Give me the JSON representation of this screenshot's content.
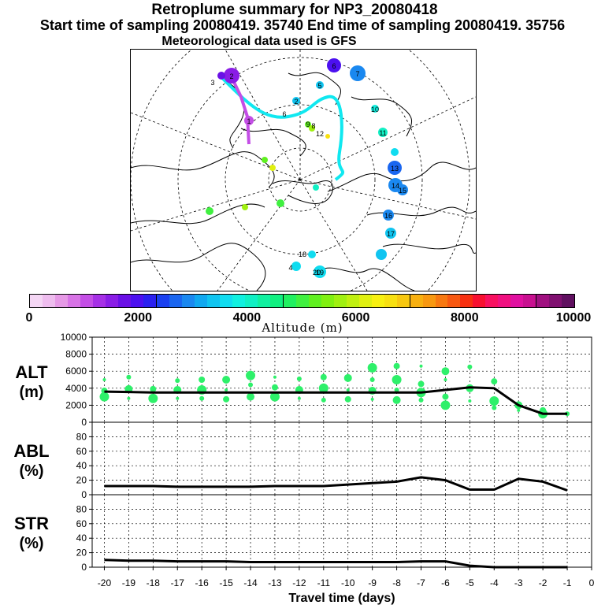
{
  "header": {
    "title": "Retroplume summary for NP3_20080418",
    "subtitle": "Start time of sampling 20080419. 35740     End time of sampling 20080419. 35756",
    "met_note": "Meteorological data used is GFS"
  },
  "colorbar": {
    "label": "Altitude (m)",
    "ticks": [
      "0",
      "2000",
      "4000",
      "6000",
      "8000",
      "10000"
    ],
    "colors": [
      "#f4d6f4",
      "#eebcee",
      "#e699e6",
      "#d873e6",
      "#c44ee6",
      "#a630e6",
      "#8a1de6",
      "#6a10e6",
      "#4c10f0",
      "#2a20f0",
      "#1a40f0",
      "#1a66f0",
      "#1a88f0",
      "#10a8f0",
      "#10c4f0",
      "#10dcf0",
      "#10f0e0",
      "#10f0c4",
      "#10f0a0",
      "#10f080",
      "#20f060",
      "#40f040",
      "#60f020",
      "#80f010",
      "#a0f010",
      "#c0f010",
      "#e0f010",
      "#f8f010",
      "#f8e010",
      "#f8c810",
      "#f8b010",
      "#f89810",
      "#f87810",
      "#f85810",
      "#f83010",
      "#f81030",
      "#f81060",
      "#f01080",
      "#e010a0",
      "#c81090",
      "#a01080",
      "#801070",
      "#601060"
    ]
  },
  "map": {
    "labels": [
      "2",
      "3",
      "6",
      "7",
      "1",
      "6",
      "2",
      "9",
      "5",
      "10",
      "11",
      "13",
      "14",
      "15",
      "16",
      "17",
      "18",
      "19",
      "20",
      "12",
      "8",
      "4"
    ]
  },
  "chart_data": [
    {
      "type": "line",
      "panel": "ALT",
      "ylabel": "ALT",
      "yunit": "(m)",
      "ylim": [
        0,
        10000
      ],
      "yticks": [
        "0",
        "2000",
        "4000",
        "6000",
        "8000",
        "10000"
      ],
      "x": [
        -20,
        -19,
        -18,
        -17,
        -16,
        -15,
        -14,
        -13,
        -12,
        -11,
        -10,
        -9,
        -8,
        -7,
        -6,
        -5,
        -4,
        -3,
        -2,
        -1
      ],
      "values": [
        3600,
        3550,
        3500,
        3500,
        3500,
        3500,
        3500,
        3500,
        3500,
        3500,
        3500,
        3500,
        3500,
        3500,
        3800,
        4100,
        4000,
        2000,
        1000,
        1000
      ],
      "scatter": [
        {
          "x": -20,
          "y": 5000
        },
        {
          "x": -20,
          "y": 3700
        },
        {
          "x": -20,
          "y": 3000
        },
        {
          "x": -19,
          "y": 5300
        },
        {
          "x": -19,
          "y": 3900
        },
        {
          "x": -19,
          "y": 2800
        },
        {
          "x": -18,
          "y": 3900
        },
        {
          "x": -18,
          "y": 2800
        },
        {
          "x": -17,
          "y": 4900
        },
        {
          "x": -17,
          "y": 3800
        },
        {
          "x": -17,
          "y": 2800
        },
        {
          "x": -16,
          "y": 5000
        },
        {
          "x": -16,
          "y": 3800
        },
        {
          "x": -16,
          "y": 2800
        },
        {
          "x": -15,
          "y": 5000
        },
        {
          "x": -15,
          "y": 3800
        },
        {
          "x": -15,
          "y": 2700
        },
        {
          "x": -14,
          "y": 5500
        },
        {
          "x": -14,
          "y": 4400
        },
        {
          "x": -14,
          "y": 3000
        },
        {
          "x": -13,
          "y": 5300
        },
        {
          "x": -13,
          "y": 4100
        },
        {
          "x": -13,
          "y": 3000
        },
        {
          "x": -12,
          "y": 5100
        },
        {
          "x": -12,
          "y": 3800
        },
        {
          "x": -12,
          "y": 2800
        },
        {
          "x": -11,
          "y": 5300
        },
        {
          "x": -11,
          "y": 4000
        },
        {
          "x": -11,
          "y": 2600
        },
        {
          "x": -10,
          "y": 5200
        },
        {
          "x": -10,
          "y": 3800
        },
        {
          "x": -10,
          "y": 2700
        },
        {
          "x": -9,
          "y": 6400
        },
        {
          "x": -9,
          "y": 5000
        },
        {
          "x": -9,
          "y": 3700
        },
        {
          "x": -9,
          "y": 2700
        },
        {
          "x": -8,
          "y": 6600
        },
        {
          "x": -8,
          "y": 5000
        },
        {
          "x": -8,
          "y": 3800
        },
        {
          "x": -8,
          "y": 2600
        },
        {
          "x": -7,
          "y": 6600
        },
        {
          "x": -7,
          "y": 4500
        },
        {
          "x": -7,
          "y": 3500
        },
        {
          "x": -7,
          "y": 2600
        },
        {
          "x": -6,
          "y": 6000
        },
        {
          "x": -6,
          "y": 5000
        },
        {
          "x": -6,
          "y": 3000
        },
        {
          "x": -6,
          "y": 2000
        },
        {
          "x": -5,
          "y": 6500
        },
        {
          "x": -5,
          "y": 4000
        },
        {
          "x": -5,
          "y": 2500
        },
        {
          "x": -4,
          "y": 4800
        },
        {
          "x": -4,
          "y": 2500
        },
        {
          "x": -4,
          "y": 1700
        },
        {
          "x": -3,
          "y": 2000
        },
        {
          "x": -3,
          "y": 1400
        },
        {
          "x": -2,
          "y": 1400
        },
        {
          "x": -2,
          "y": 1000
        },
        {
          "x": -1,
          "y": 1000
        }
      ]
    },
    {
      "type": "line",
      "panel": "ABL",
      "ylabel": "ABL",
      "yunit": "(%)",
      "ylim": [
        0,
        100
      ],
      "yticks": [
        "0",
        "20",
        "40",
        "60",
        "80"
      ],
      "x": [
        -20,
        -19,
        -18,
        -17,
        -16,
        -15,
        -14,
        -13,
        -12,
        -11,
        -10,
        -9,
        -8,
        -7,
        -6,
        -5,
        -4,
        -3,
        -2,
        -1
      ],
      "values": [
        12,
        12,
        12,
        11,
        11,
        11,
        11,
        12,
        12,
        12,
        14,
        16,
        18,
        24,
        20,
        7,
        7,
        22,
        18,
        6
      ]
    },
    {
      "type": "line",
      "panel": "STR",
      "ylabel": "STR",
      "yunit": "(%)",
      "ylim": [
        0,
        100
      ],
      "yticks": [
        "0",
        "20",
        "40",
        "60",
        "80"
      ],
      "x": [
        -20,
        -19,
        -18,
        -17,
        -16,
        -15,
        -14,
        -13,
        -12,
        -11,
        -10,
        -9,
        -8,
        -7,
        -6,
        -5,
        -4,
        -3,
        -2,
        -1
      ],
      "values": [
        10,
        9,
        9,
        8,
        8,
        8,
        7,
        7,
        7,
        7,
        7,
        7,
        7,
        8,
        8,
        2,
        0,
        0,
        0,
        0
      ],
      "xlabel": "Travel time (days)",
      "xticks": [
        "-20",
        "-19",
        "-18",
        "-17",
        "-16",
        "-15",
        "-14",
        "-13",
        "-12",
        "-11",
        "-10",
        "-9",
        "-8",
        "-7",
        "-6",
        "-5",
        "-4",
        "-3",
        "-2",
        "-1",
        "0"
      ]
    }
  ]
}
